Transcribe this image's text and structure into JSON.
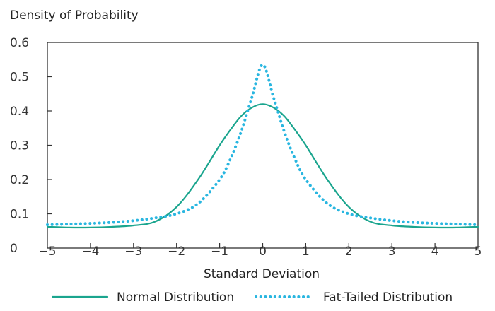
{
  "chart_data": {
    "type": "line",
    "ylabel": "Density of Probability",
    "xlabel": "Standard Deviation",
    "xlim": [
      -5,
      5
    ],
    "ylim": [
      0,
      0.6
    ],
    "x_ticks": [
      "−5",
      "−4",
      "−3",
      "−2",
      "−1",
      "0",
      "1",
      "2",
      "3",
      "4",
      "5"
    ],
    "y_ticks": [
      "0",
      "0.1",
      "0.2",
      "0.3",
      "0.4",
      "0.5",
      "0.6"
    ],
    "grid": false,
    "legend": "bottom",
    "series": [
      {
        "name": "Normal Distribution",
        "color": "#1aa58e",
        "style": "solid",
        "x": [
          -5,
          -4.5,
          -4,
          -3.5,
          -3,
          -2.5,
          -2,
          -1.5,
          -1,
          -0.75,
          -0.5,
          -0.25,
          0,
          0.25,
          0.5,
          0.75,
          1,
          1.5,
          2,
          2.5,
          3,
          3.5,
          4,
          4.5,
          5
        ],
        "y": [
          0.062,
          0.06,
          0.06,
          0.062,
          0.066,
          0.077,
          0.12,
          0.2,
          0.3,
          0.345,
          0.385,
          0.41,
          0.42,
          0.41,
          0.385,
          0.345,
          0.3,
          0.2,
          0.12,
          0.077,
          0.066,
          0.062,
          0.06,
          0.06,
          0.062
        ]
      },
      {
        "name": "Fat-Tailed Distribution",
        "color": "#29b6e0",
        "style": "dotted",
        "x": [
          -5,
          -4.5,
          -4,
          -3.5,
          -3,
          -2.5,
          -2,
          -1.5,
          -1,
          -0.75,
          -0.5,
          -0.25,
          0,
          0.25,
          0.5,
          0.75,
          1,
          1.5,
          2,
          2.5,
          3,
          3.5,
          4,
          4.5,
          5
        ],
        "y": [
          0.068,
          0.07,
          0.072,
          0.075,
          0.08,
          0.088,
          0.1,
          0.13,
          0.2,
          0.26,
          0.34,
          0.44,
          0.535,
          0.44,
          0.34,
          0.26,
          0.2,
          0.13,
          0.1,
          0.088,
          0.08,
          0.075,
          0.072,
          0.07,
          0.068
        ]
      }
    ]
  }
}
